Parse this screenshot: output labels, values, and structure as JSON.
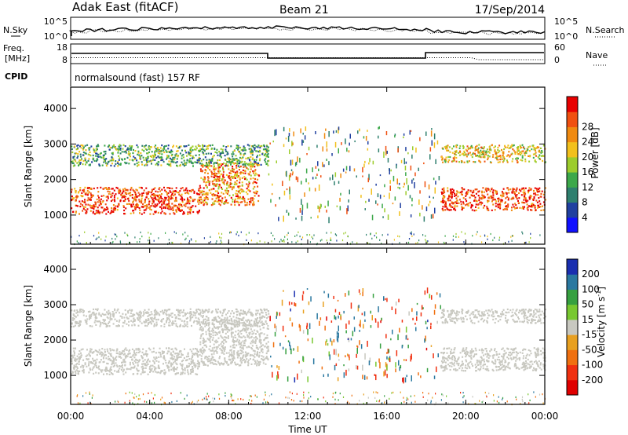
{
  "header": {
    "station": "Adak East (fitACF)",
    "beam": "Beam 21",
    "date": "17/Sep/2014"
  },
  "noise_panel": {
    "left_label": "N.Sky",
    "left_ticks": [
      "10^5",
      "10^0"
    ],
    "right_label": "N.Search",
    "right_ticks": [
      "10^5",
      "10^0"
    ]
  },
  "freq_panel": {
    "left_label_1": "Freq.",
    "left_label_2": "[MHz]",
    "left_ticks": [
      "18",
      "8"
    ],
    "right_label": "Nave",
    "right_ticks": [
      "60",
      "0"
    ]
  },
  "cpid": {
    "label": "CPID",
    "text": "normalsound (fast) 157 RF"
  },
  "axes": {
    "ylabel": "Slant Range [km]",
    "xlabel": "Time UT",
    "y_ticks": [
      "1000",
      "2000",
      "3000",
      "4000"
    ],
    "x_ticks": [
      "00:00",
      "04:00",
      "08:00",
      "12:00",
      "16:00",
      "20:00",
      "00:00"
    ]
  },
  "power_scale": {
    "label": "Power [dB]",
    "ticks": [
      "4",
      "8",
      "12",
      "16",
      "20",
      "24",
      "28"
    ],
    "colors": [
      "#1010ff",
      "#2040a0",
      "#2e7f6e",
      "#3ca84a",
      "#9ccc2c",
      "#f2c01c",
      "#f08a10",
      "#f05010",
      "#e80000"
    ]
  },
  "velocity_scale": {
    "label": "Velocity [m s",
    "label_sup": "-1",
    "label_close": "]",
    "ticks": [
      "200",
      "100",
      "50",
      "15",
      "-15",
      "-50",
      "-100",
      "-200"
    ],
    "colors": [
      "#1a2fb0",
      "#2a78a0",
      "#36a040",
      "#78c830",
      "#c8c8c0",
      "#e8a020",
      "#f07010",
      "#f03010",
      "#e00000"
    ]
  },
  "chart_data": [
    {
      "type": "heatmap",
      "title": "Power",
      "x_range_hours": [
        0,
        24
      ],
      "y_range_km": [
        180,
        4600
      ],
      "colorbar_range_db": [
        0,
        30
      ],
      "bands": [
        {
          "t_start": 0.0,
          "t_end": 6.5,
          "range_km": [
            1050,
            1800
          ],
          "power_db": 26
        },
        {
          "t_start": 6.5,
          "t_end": 9.5,
          "range_km": [
            1300,
            2500
          ],
          "power_db": 22
        },
        {
          "t_start": 0.0,
          "t_end": 10.0,
          "range_km": [
            2400,
            3000
          ],
          "power_db": 12
        },
        {
          "t_start": 18.7,
          "t_end": 24.0,
          "range_km": [
            1150,
            1800
          ],
          "power_db": 26
        },
        {
          "t_start": 18.7,
          "t_end": 24.0,
          "range_km": [
            2500,
            3000
          ],
          "power_db": 18
        }
      ]
    },
    {
      "type": "heatmap",
      "title": "Velocity",
      "x_range_hours": [
        0,
        24
      ],
      "y_range_km": [
        180,
        4600
      ],
      "colorbar_range_ms": [
        -250,
        250
      ],
      "bands": [
        {
          "t_start": 0.0,
          "t_end": 6.5,
          "range_km": [
            1050,
            1800
          ],
          "velocity_ms": 0
        },
        {
          "t_start": 6.5,
          "t_end": 10.0,
          "range_km": [
            1300,
            2600
          ],
          "velocity_ms": 0
        },
        {
          "t_start": 0.0,
          "t_end": 10.0,
          "range_km": [
            2400,
            2900
          ],
          "velocity_ms": 0
        },
        {
          "t_start": 18.7,
          "t_end": 24.0,
          "range_km": [
            1150,
            1800
          ],
          "velocity_ms": 0
        },
        {
          "t_start": 18.7,
          "t_end": 24.0,
          "range_km": [
            2500,
            2900
          ],
          "velocity_ms": 0
        }
      ]
    }
  ]
}
